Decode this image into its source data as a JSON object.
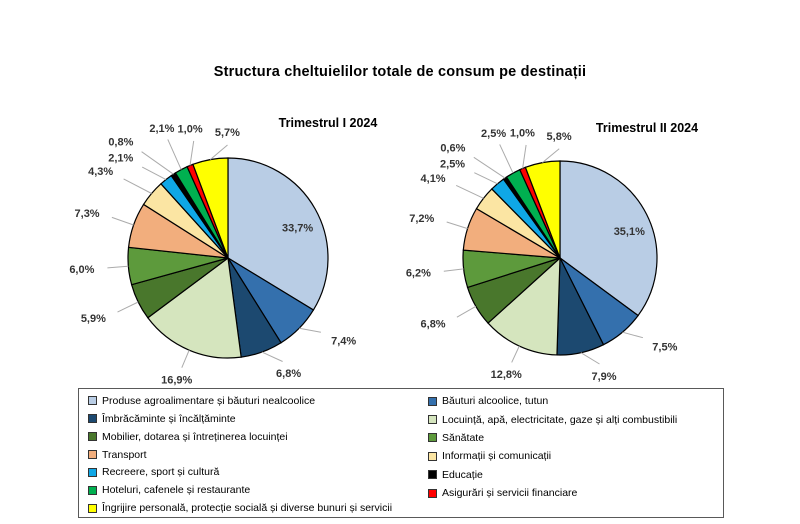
{
  "chart_data": {
    "type": "pie",
    "title": "Structura cheltuielilor totale de consum pe destinații",
    "unit": "%",
    "legend_position": "bottom",
    "categories": [
      "Produse agroalimentare și băuturi nealcoolice",
      "Băuturi alcoolice, tutun",
      "Îmbrăcăminte și încălțăminte",
      "Locuință, apă, electricitate, gaze și alți combustibili",
      "Mobilier, dotarea și întreținerea locuinței",
      "Sănătate",
      "Transport",
      "Informații și comunicații",
      "Recreere, sport și cultură",
      "Educație",
      "Hoteluri, cafenele și restaurante",
      "Asigurări și servicii financiare",
      "Îngrijire personală, protecție socială și diverse bunuri și servicii"
    ],
    "colors": [
      "#b9cde5",
      "#3470ad",
      "#1c4970",
      "#d5e5be",
      "#49772c",
      "#5d9a3c",
      "#f2ae7d",
      "#fbe5a3",
      "#0fa7e6",
      "#000000",
      "#00b050",
      "#ff0000",
      "#ffff00"
    ],
    "series": [
      {
        "name": "Trimestrul I 2024",
        "values": [
          33.7,
          7.4,
          6.8,
          16.9,
          5.9,
          6.0,
          7.3,
          4.3,
          2.1,
          0.8,
          2.1,
          1.0,
          5.7
        ],
        "display_labels": [
          "33,7%",
          "7,4%",
          "6,8%",
          "16,9%",
          "5,9%",
          "6,0%",
          "7,3%",
          "4,3%",
          "2,1%",
          "0,8%",
          "2,1%",
          "1,0%",
          "5,7%"
        ]
      },
      {
        "name": "Trimestrul II 2024",
        "values": [
          35.1,
          7.5,
          7.9,
          12.8,
          6.8,
          6.2,
          7.2,
          4.1,
          2.5,
          0.6,
          2.5,
          1.0,
          5.8
        ],
        "display_labels": [
          "35,1%",
          "7,5%",
          "7,9%",
          "12,8%",
          "6,8%",
          "6,2%",
          "7,2%",
          "4,1%",
          "2,5%",
          "0,6%",
          "2,5%",
          "1,0%",
          "5,8%"
        ]
      }
    ]
  },
  "legend": {
    "left_column_indices": [
      0,
      2,
      4,
      6,
      8,
      10,
      12
    ],
    "right_column_indices": [
      1,
      3,
      5,
      7,
      9,
      11
    ]
  }
}
